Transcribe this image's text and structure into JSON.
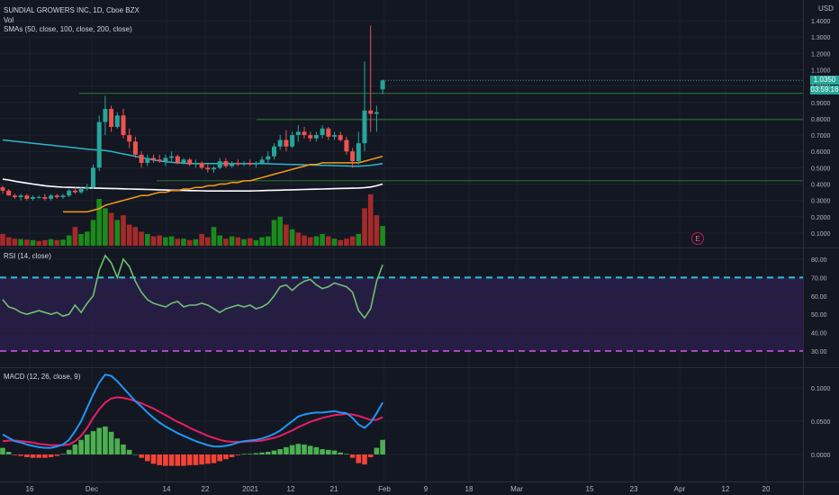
{
  "header": {
    "symbol_line": "SUNDIAL GROWERS INC, 1D, Cboe BZX",
    "vol_label": "Vol",
    "sma_label": "SMAs (50, close, 100, close, 200, close)",
    "rsi_label": "RSI (14, close)",
    "macd_label": "MACD (12, 26, close, 9)",
    "currency": "USD",
    "price_tag": "1.0350",
    "countdown_tag": "03:59:16",
    "earnings_marker": "E"
  },
  "colors": {
    "background": "#131722",
    "up": "#26a69a",
    "down": "#ef5350",
    "vol_up": "#1b8a1b",
    "vol_down": "#a52a2a",
    "sma50": "#f59c1a",
    "sma100": "#2fb5c9",
    "sma200": "#ffffff",
    "rsi_line": "#6fbf73",
    "rsi_band": "#2a1f4a",
    "rsi_upper": "#26c6da",
    "rsi_lower": "#ab47bc",
    "macd_line": "#2196f3",
    "signal_line": "#e91e63",
    "hist_up": "#4caf50",
    "hist_down": "#f44336",
    "hline": "#2e7d32"
  },
  "chart_data": [
    {
      "type": "candlestick",
      "title": "SUNDIAL GROWERS INC, 1D, Cboe BZX",
      "x_tick_labels": [
        "16",
        "Dec",
        "14",
        "22",
        "2021",
        "12",
        "21",
        "Feb",
        "9",
        "18",
        "Mar",
        "15",
        "23",
        "Apr",
        "12",
        "20"
      ],
      "y_tick_labels": [
        "1.4000",
        "1.3000",
        "1.2000",
        "1.1000",
        "1.0000",
        "0.9000",
        "0.8000",
        "0.7000",
        "0.6000",
        "0.5000",
        "0.4000",
        "0.3000",
        "0.2000",
        "0.1000"
      ],
      "ylim": [
        0.0,
        1.45
      ],
      "horizontal_lines": [
        0.955,
        0.795,
        0.42
      ],
      "last_price": 1.035,
      "ohlc": [
        [
          0.38,
          0.39,
          0.34,
          0.36
        ],
        [
          0.36,
          0.37,
          0.33,
          0.33
        ],
        [
          0.33,
          0.34,
          0.31,
          0.32
        ],
        [
          0.32,
          0.34,
          0.3,
          0.33
        ],
        [
          0.33,
          0.34,
          0.3,
          0.31
        ],
        [
          0.31,
          0.33,
          0.3,
          0.32
        ],
        [
          0.32,
          0.33,
          0.31,
          0.32
        ],
        [
          0.32,
          0.34,
          0.3,
          0.31
        ],
        [
          0.31,
          0.34,
          0.3,
          0.33
        ],
        [
          0.33,
          0.34,
          0.31,
          0.32
        ],
        [
          0.32,
          0.34,
          0.31,
          0.33
        ],
        [
          0.33,
          0.37,
          0.32,
          0.36
        ],
        [
          0.36,
          0.38,
          0.34,
          0.35
        ],
        [
          0.35,
          0.38,
          0.34,
          0.37
        ],
        [
          0.37,
          0.4,
          0.36,
          0.38
        ],
        [
          0.38,
          0.52,
          0.37,
          0.5
        ],
        [
          0.5,
          0.82,
          0.48,
          0.78
        ],
        [
          0.78,
          0.94,
          0.7,
          0.86
        ],
        [
          0.86,
          0.88,
          0.72,
          0.75
        ],
        [
          0.75,
          0.84,
          0.74,
          0.82
        ],
        [
          0.82,
          0.86,
          0.68,
          0.7
        ],
        [
          0.7,
          0.74,
          0.62,
          0.66
        ],
        [
          0.66,
          0.69,
          0.56,
          0.58
        ],
        [
          0.58,
          0.6,
          0.5,
          0.53
        ],
        [
          0.53,
          0.58,
          0.51,
          0.56
        ],
        [
          0.56,
          0.58,
          0.53,
          0.55
        ],
        [
          0.55,
          0.58,
          0.53,
          0.54
        ],
        [
          0.54,
          0.58,
          0.51,
          0.56
        ],
        [
          0.56,
          0.6,
          0.53,
          0.57
        ],
        [
          0.57,
          0.58,
          0.52,
          0.53
        ],
        [
          0.53,
          0.56,
          0.52,
          0.55
        ],
        [
          0.55,
          0.56,
          0.51,
          0.52
        ],
        [
          0.52,
          0.55,
          0.5,
          0.53
        ],
        [
          0.53,
          0.54,
          0.49,
          0.5
        ],
        [
          0.5,
          0.52,
          0.47,
          0.49
        ],
        [
          0.49,
          0.51,
          0.47,
          0.5
        ],
        [
          0.5,
          0.56,
          0.49,
          0.54
        ],
        [
          0.54,
          0.56,
          0.5,
          0.51
        ],
        [
          0.51,
          0.54,
          0.5,
          0.53
        ],
        [
          0.53,
          0.55,
          0.51,
          0.52
        ],
        [
          0.52,
          0.54,
          0.51,
          0.53
        ],
        [
          0.53,
          0.55,
          0.51,
          0.52
        ],
        [
          0.52,
          0.54,
          0.5,
          0.53
        ],
        [
          0.53,
          0.57,
          0.52,
          0.55
        ],
        [
          0.55,
          0.6,
          0.53,
          0.57
        ],
        [
          0.57,
          0.65,
          0.55,
          0.63
        ],
        [
          0.63,
          0.7,
          0.61,
          0.67
        ],
        [
          0.67,
          0.73,
          0.6,
          0.63
        ],
        [
          0.63,
          0.72,
          0.62,
          0.7
        ],
        [
          0.7,
          0.76,
          0.66,
          0.72
        ],
        [
          0.72,
          0.75,
          0.68,
          0.7
        ],
        [
          0.7,
          0.72,
          0.66,
          0.68
        ],
        [
          0.68,
          0.72,
          0.66,
          0.7
        ],
        [
          0.7,
          0.76,
          0.68,
          0.74
        ],
        [
          0.74,
          0.75,
          0.67,
          0.69
        ],
        [
          0.69,
          0.72,
          0.67,
          0.7
        ],
        [
          0.7,
          0.72,
          0.66,
          0.67
        ],
        [
          0.67,
          0.69,
          0.58,
          0.6
        ],
        [
          0.6,
          0.62,
          0.5,
          0.54
        ],
        [
          0.54,
          0.72,
          0.52,
          0.65
        ],
        [
          0.65,
          1.15,
          0.6,
          0.85
        ],
        [
          0.85,
          1.37,
          0.72,
          0.83
        ],
        [
          0.83,
          0.88,
          0.72,
          0.84
        ],
        [
          0.98,
          1.04,
          0.95,
          1.035
        ]
      ],
      "volume": [
        {
          "v": 0.25,
          "up": false
        },
        {
          "v": 0.18,
          "up": false
        },
        {
          "v": 0.15,
          "up": false
        },
        {
          "v": 0.14,
          "up": true
        },
        {
          "v": 0.13,
          "up": false
        },
        {
          "v": 0.12,
          "up": true
        },
        {
          "v": 0.1,
          "up": false
        },
        {
          "v": 0.12,
          "up": false
        },
        {
          "v": 0.14,
          "up": true
        },
        {
          "v": 0.12,
          "up": false
        },
        {
          "v": 0.13,
          "up": true
        },
        {
          "v": 0.22,
          "up": true
        },
        {
          "v": 0.4,
          "up": false
        },
        {
          "v": 0.25,
          "up": true
        },
        {
          "v": 0.3,
          "up": true
        },
        {
          "v": 0.55,
          "up": true
        },
        {
          "v": 1.0,
          "up": true
        },
        {
          "v": 0.8,
          "up": true
        },
        {
          "v": 0.7,
          "up": false
        },
        {
          "v": 0.55,
          "up": true
        },
        {
          "v": 0.65,
          "up": false
        },
        {
          "v": 0.45,
          "up": false
        },
        {
          "v": 0.4,
          "up": false
        },
        {
          "v": 0.3,
          "up": false
        },
        {
          "v": 0.25,
          "up": true
        },
        {
          "v": 0.2,
          "up": false
        },
        {
          "v": 0.22,
          "up": false
        },
        {
          "v": 0.18,
          "up": true
        },
        {
          "v": 0.2,
          "up": true
        },
        {
          "v": 0.15,
          "up": false
        },
        {
          "v": 0.15,
          "up": true
        },
        {
          "v": 0.12,
          "up": false
        },
        {
          "v": 0.14,
          "up": true
        },
        {
          "v": 0.25,
          "up": false
        },
        {
          "v": 0.18,
          "up": false
        },
        {
          "v": 0.4,
          "up": true
        },
        {
          "v": 0.22,
          "up": true
        },
        {
          "v": 0.15,
          "up": false
        },
        {
          "v": 0.2,
          "up": true
        },
        {
          "v": 0.18,
          "up": false
        },
        {
          "v": 0.14,
          "up": true
        },
        {
          "v": 0.16,
          "up": false
        },
        {
          "v": 0.12,
          "up": true
        },
        {
          "v": 0.18,
          "up": true
        },
        {
          "v": 0.2,
          "up": true
        },
        {
          "v": 0.55,
          "up": true
        },
        {
          "v": 0.62,
          "up": true
        },
        {
          "v": 0.45,
          "up": false
        },
        {
          "v": 0.35,
          "up": true
        },
        {
          "v": 0.28,
          "up": false
        },
        {
          "v": 0.22,
          "up": false
        },
        {
          "v": 0.18,
          "up": false
        },
        {
          "v": 0.2,
          "up": true
        },
        {
          "v": 0.25,
          "up": true
        },
        {
          "v": 0.2,
          "up": false
        },
        {
          "v": 0.15,
          "up": true
        },
        {
          "v": 0.12,
          "up": false
        },
        {
          "v": 0.15,
          "up": false
        },
        {
          "v": 0.2,
          "up": false
        },
        {
          "v": 0.25,
          "up": true
        },
        {
          "v": 0.8,
          "up": false
        },
        {
          "v": 1.1,
          "up": false
        },
        {
          "v": 0.65,
          "up": false
        },
        {
          "v": 0.42,
          "up": true
        }
      ],
      "sma50": [
        null,
        null,
        null,
        null,
        null,
        null,
        null,
        null,
        null,
        null,
        0.23,
        0.23,
        0.23,
        0.23,
        0.23,
        0.24,
        0.25,
        0.27,
        0.28,
        0.29,
        0.3,
        0.31,
        0.32,
        0.33,
        0.33,
        0.34,
        0.35,
        0.35,
        0.36,
        0.36,
        0.37,
        0.37,
        0.38,
        0.38,
        0.39,
        0.39,
        0.4,
        0.4,
        0.41,
        0.41,
        0.42,
        0.42,
        0.43,
        0.44,
        0.45,
        0.46,
        0.47,
        0.48,
        0.49,
        0.5,
        0.51,
        0.52,
        0.52,
        0.53,
        0.53,
        0.53,
        0.53,
        0.53,
        0.53,
        0.53,
        0.54,
        0.55,
        0.56,
        0.57
      ],
      "sma100": [
        0.67,
        0.666,
        0.662,
        0.658,
        0.654,
        0.65,
        0.646,
        0.642,
        0.638,
        0.634,
        0.63,
        0.626,
        0.622,
        0.618,
        0.614,
        0.61,
        0.608,
        0.605,
        0.6,
        0.592,
        0.585,
        0.577,
        0.57,
        0.562,
        0.555,
        0.548,
        0.542,
        0.537,
        0.533,
        0.53,
        0.528,
        0.526,
        0.525,
        0.525,
        0.525,
        0.525,
        0.525,
        0.525,
        0.525,
        0.525,
        0.525,
        0.525,
        0.525,
        0.525,
        0.524,
        0.523,
        0.522,
        0.521,
        0.52,
        0.519,
        0.518,
        0.517,
        0.516,
        0.515,
        0.514,
        0.513,
        0.512,
        0.511,
        0.51,
        0.51,
        0.512,
        0.515,
        0.52,
        0.525
      ],
      "sma200": [
        0.43,
        0.425,
        0.418,
        0.412,
        0.406,
        0.4,
        0.395,
        0.39,
        0.386,
        0.383,
        0.381,
        0.38,
        0.379,
        0.378,
        0.377,
        0.376,
        0.375,
        0.374,
        0.373,
        0.372,
        0.371,
        0.37,
        0.369,
        0.368,
        0.367,
        0.366,
        0.365,
        0.364,
        0.363,
        0.362,
        0.361,
        0.36,
        0.36,
        0.359,
        0.358,
        0.358,
        0.358,
        0.358,
        0.358,
        0.358,
        0.358,
        0.358,
        0.359,
        0.36,
        0.361,
        0.362,
        0.363,
        0.364,
        0.365,
        0.366,
        0.367,
        0.368,
        0.369,
        0.37,
        0.371,
        0.372,
        0.373,
        0.374,
        0.375,
        0.376,
        0.378,
        0.382,
        0.39,
        0.4
      ]
    },
    {
      "type": "line",
      "title": "RSI (14, close)",
      "y_tick_labels": [
        "80.00",
        "70.00",
        "60.00",
        "50.00",
        "40.00",
        "30.00"
      ],
      "ylim": [
        27,
        86
      ],
      "bands": [
        30,
        70
      ],
      "values": [
        58,
        54,
        53,
        51,
        50,
        51,
        52,
        51,
        50,
        51,
        49,
        50,
        55,
        51,
        56,
        60,
        74,
        82,
        78,
        70,
        80,
        76,
        68,
        62,
        58,
        56,
        55,
        54,
        56,
        57,
        54,
        55,
        55,
        56,
        55,
        53,
        51,
        53,
        54,
        55,
        54,
        55,
        53,
        54,
        56,
        60,
        65,
        66,
        63,
        66,
        68,
        69,
        66,
        64,
        65,
        67,
        66,
        65,
        62,
        52,
        48,
        53,
        68,
        77
      ]
    },
    {
      "type": "bar+line",
      "title": "MACD (12, 26, close, 9)",
      "y_tick_labels": [
        "0.1000",
        "0.0500",
        "0.0000"
      ],
      "ylim": [
        -0.025,
        0.135
      ],
      "macd": [
        0.03,
        0.025,
        0.02,
        0.018,
        0.015,
        0.013,
        0.011,
        0.01,
        0.01,
        0.012,
        0.015,
        0.022,
        0.035,
        0.05,
        0.07,
        0.09,
        0.108,
        0.12,
        0.118,
        0.11,
        0.1,
        0.09,
        0.08,
        0.072,
        0.063,
        0.055,
        0.048,
        0.042,
        0.037,
        0.032,
        0.028,
        0.024,
        0.02,
        0.017,
        0.014,
        0.012,
        0.012,
        0.013,
        0.015,
        0.018,
        0.02,
        0.021,
        0.022,
        0.024,
        0.027,
        0.031,
        0.036,
        0.043,
        0.05,
        0.057,
        0.06,
        0.062,
        0.063,
        0.063,
        0.064,
        0.065,
        0.063,
        0.062,
        0.055,
        0.045,
        0.04,
        0.048,
        0.062,
        0.078
      ],
      "signal": [
        0.02,
        0.021,
        0.021,
        0.02,
        0.019,
        0.018,
        0.016,
        0.015,
        0.014,
        0.014,
        0.014,
        0.015,
        0.02,
        0.028,
        0.04,
        0.055,
        0.068,
        0.078,
        0.084,
        0.086,
        0.085,
        0.083,
        0.08,
        0.077,
        0.073,
        0.069,
        0.064,
        0.059,
        0.054,
        0.049,
        0.045,
        0.04,
        0.036,
        0.032,
        0.028,
        0.025,
        0.022,
        0.02,
        0.019,
        0.019,
        0.019,
        0.02,
        0.02,
        0.021,
        0.023,
        0.025,
        0.028,
        0.032,
        0.036,
        0.041,
        0.045,
        0.049,
        0.052,
        0.055,
        0.057,
        0.059,
        0.06,
        0.061,
        0.06,
        0.058,
        0.055,
        0.052,
        0.052,
        0.056
      ],
      "histogram": [
        0.01,
        0.004,
        -0.001,
        -0.002,
        -0.004,
        -0.005,
        -0.005,
        -0.005,
        -0.004,
        -0.002,
        0.001,
        0.007,
        0.015,
        0.022,
        0.03,
        0.035,
        0.04,
        0.042,
        0.034,
        0.024,
        0.015,
        0.007,
        0.0,
        -0.005,
        -0.01,
        -0.014,
        -0.016,
        -0.017,
        -0.017,
        -0.017,
        -0.017,
        -0.016,
        -0.016,
        -0.015,
        -0.014,
        -0.013,
        -0.01,
        -0.007,
        -0.004,
        -0.001,
        0.001,
        0.001,
        0.002,
        0.003,
        0.004,
        0.006,
        0.008,
        0.011,
        0.014,
        0.016,
        0.015,
        0.013,
        0.011,
        0.008,
        0.007,
        0.006,
        0.003,
        0.001,
        -0.005,
        -0.013,
        -0.015,
        -0.004,
        0.01,
        0.022
      ]
    }
  ]
}
